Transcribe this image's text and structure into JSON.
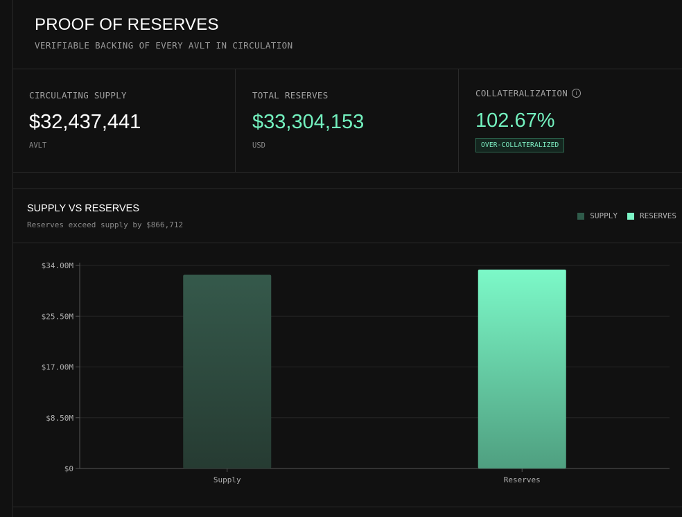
{
  "header": {
    "title": "PROOF OF RESERVES",
    "subtitle": "VERIFIABLE BACKING OF EVERY AVLT IN CIRCULATION"
  },
  "stats": {
    "supply": {
      "label": "CIRCULATING SUPPLY",
      "value": "$32,437,441",
      "unit": "AVLT"
    },
    "reserves": {
      "label": "TOTAL RESERVES",
      "value": "$33,304,153",
      "unit": "USD"
    },
    "collateralization": {
      "label": "COLLATERALIZATION",
      "value": "102.67%",
      "badge": "OVER-COLLATERALIZED",
      "icon": "info-icon"
    }
  },
  "chart": {
    "title": "SUPPLY VS RESERVES",
    "subtitle": "Reserves exceed supply by $866,712",
    "legend": [
      {
        "label": "SUPPLY",
        "color": "#2f5b4a"
      },
      {
        "label": "RESERVES",
        "color": "#7cf5c6"
      }
    ]
  },
  "colors": {
    "accent": "#73f0be",
    "supply_top": "#35594b",
    "supply_bottom": "#263b32",
    "reserves_top": "#7cf9c8",
    "reserves_bottom": "#4f9f80"
  },
  "chart_data": {
    "type": "bar",
    "categories": [
      "Supply",
      "Reserves"
    ],
    "values": [
      32437441,
      33304153
    ],
    "ytick_values": [
      0,
      8500000,
      17000000,
      25500000,
      34000000
    ],
    "ytick_labels": [
      "$0",
      "$8.50M",
      "$17.00M",
      "$25.50M",
      "$34.00M"
    ],
    "ylim": [
      0,
      34000000
    ],
    "grid": true,
    "legend_position": "top-right"
  }
}
